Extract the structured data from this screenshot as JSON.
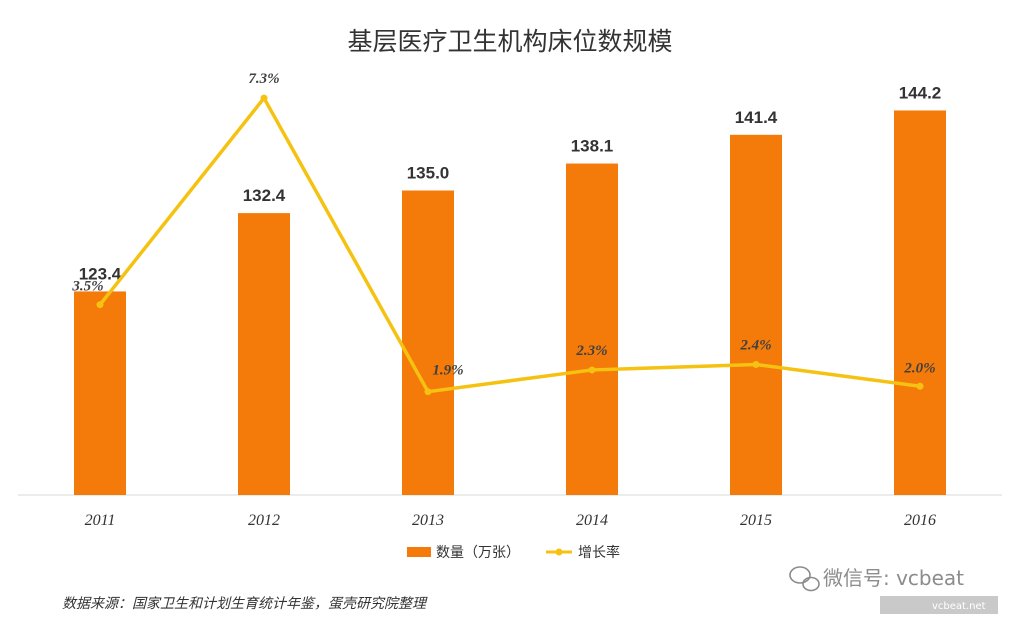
{
  "chart_data": {
    "type": "bar",
    "title": "基层医疗卫生机构床位数规模",
    "categories": [
      "2011",
      "2012",
      "2013",
      "2014",
      "2015",
      "2016"
    ],
    "series": [
      {
        "name": "数量（万张）",
        "type": "bar",
        "color": "#F47B0A",
        "values": [
          123.4,
          132.4,
          135.0,
          138.1,
          141.4,
          144.2
        ],
        "labels": [
          "123.4",
          "132.4",
          "135.0",
          "138.1",
          "141.4",
          "144.2"
        ]
      },
      {
        "name": "增长率",
        "type": "line",
        "color": "#F5C211",
        "values": [
          3.5,
          7.3,
          1.9,
          2.3,
          2.4,
          2.0
        ],
        "labels": [
          "3.5%",
          "7.3%",
          "1.9%",
          "2.3%",
          "2.4%",
          "2.0%"
        ]
      }
    ],
    "bar_axis_range": [
      100,
      150
    ],
    "line_axis_range": [
      0,
      8
    ],
    "legend_position": "bottom",
    "grid": false
  },
  "source_note": "数据来源：国家卫生和计划生育统计年鉴，蛋壳研究院整理",
  "watermark": {
    "wechat_label": "微信号: vcbeat",
    "site": "vcbeat.net"
  }
}
